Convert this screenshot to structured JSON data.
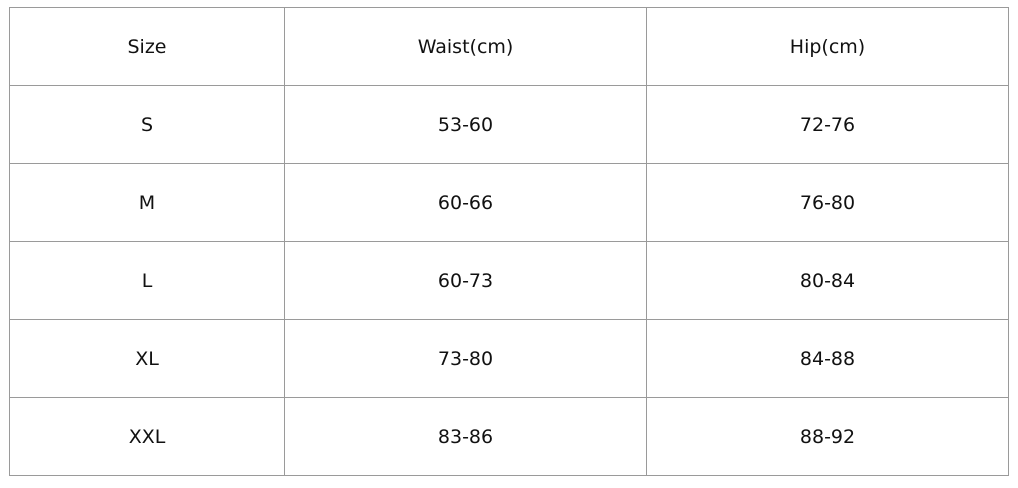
{
  "table": {
    "headers": [
      "Size",
      "Waist(cm)",
      "Hip(cm)"
    ],
    "rows": [
      [
        "S",
        "53-60",
        "72-76"
      ],
      [
        "M",
        "60-66",
        "76-80"
      ],
      [
        "L",
        "60-73",
        "80-84"
      ],
      [
        "XL",
        "73-80",
        "84-88"
      ],
      [
        "XXL",
        "83-86",
        "88-92"
      ]
    ]
  }
}
